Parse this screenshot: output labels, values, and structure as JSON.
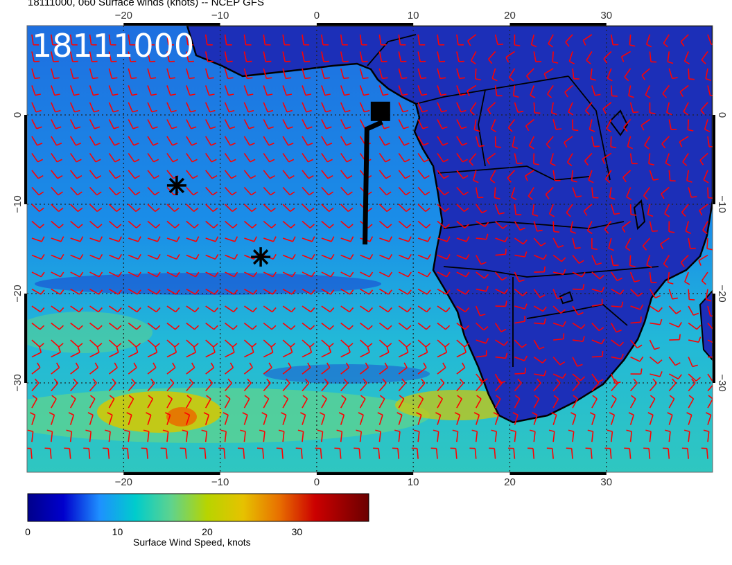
{
  "header": {
    "title": "18111000, 060 Surface winds (knots) -- NCEP GFS",
    "date_stamp": "18111000"
  },
  "map": {
    "projection": "lat-lon",
    "lon_range": [
      -30,
      41
    ],
    "lat_range": [
      -40,
      10
    ],
    "grid_lines": "dotted",
    "lon_ticks": [
      {
        "value": -20,
        "label": "−20"
      },
      {
        "value": -10,
        "label": "−10"
      },
      {
        "value": 0,
        "label": "0"
      },
      {
        "value": 10,
        "label": "10"
      },
      {
        "value": 20,
        "label": "20"
      },
      {
        "value": 30,
        "label": "30"
      }
    ],
    "lat_ticks": [
      {
        "value": 0,
        "label": "0"
      },
      {
        "value": -10,
        "label": "−10"
      },
      {
        "value": -20,
        "label": "−20"
      },
      {
        "value": -30,
        "label": "−30"
      }
    ],
    "barb_color": "#ff0000",
    "land_outline_color": "#000000",
    "markers": [
      {
        "type": "asterisk",
        "lon": -14.5,
        "lat": -7.9
      },
      {
        "type": "asterisk",
        "lon": -5.8,
        "lat": -15.9
      },
      {
        "type": "flag",
        "lon": 6.6,
        "lat": 0.4
      },
      {
        "type": "track",
        "points": [
          [
            5.2,
            -0.8
          ],
          [
            5.0,
            -14.5
          ]
        ]
      }
    ]
  },
  "colorbar": {
    "label": "Surface Wind Speed, knots",
    "range": [
      0,
      38
    ],
    "ticks": [
      {
        "value": 0,
        "label": "0"
      },
      {
        "value": 10,
        "label": "10"
      },
      {
        "value": 20,
        "label": "20"
      },
      {
        "value": 30,
        "label": "30"
      }
    ],
    "stops": [
      {
        "value": 0,
        "color": "#00008b"
      },
      {
        "value": 4,
        "color": "#0000cd"
      },
      {
        "value": 8,
        "color": "#1e90ff"
      },
      {
        "value": 12,
        "color": "#00cccc"
      },
      {
        "value": 16,
        "color": "#5fd38d"
      },
      {
        "value": 20,
        "color": "#b8d400"
      },
      {
        "value": 24,
        "color": "#e6c200"
      },
      {
        "value": 28,
        "color": "#e87000"
      },
      {
        "value": 32,
        "color": "#cc0000"
      },
      {
        "value": 38,
        "color": "#6b0000"
      }
    ]
  }
}
